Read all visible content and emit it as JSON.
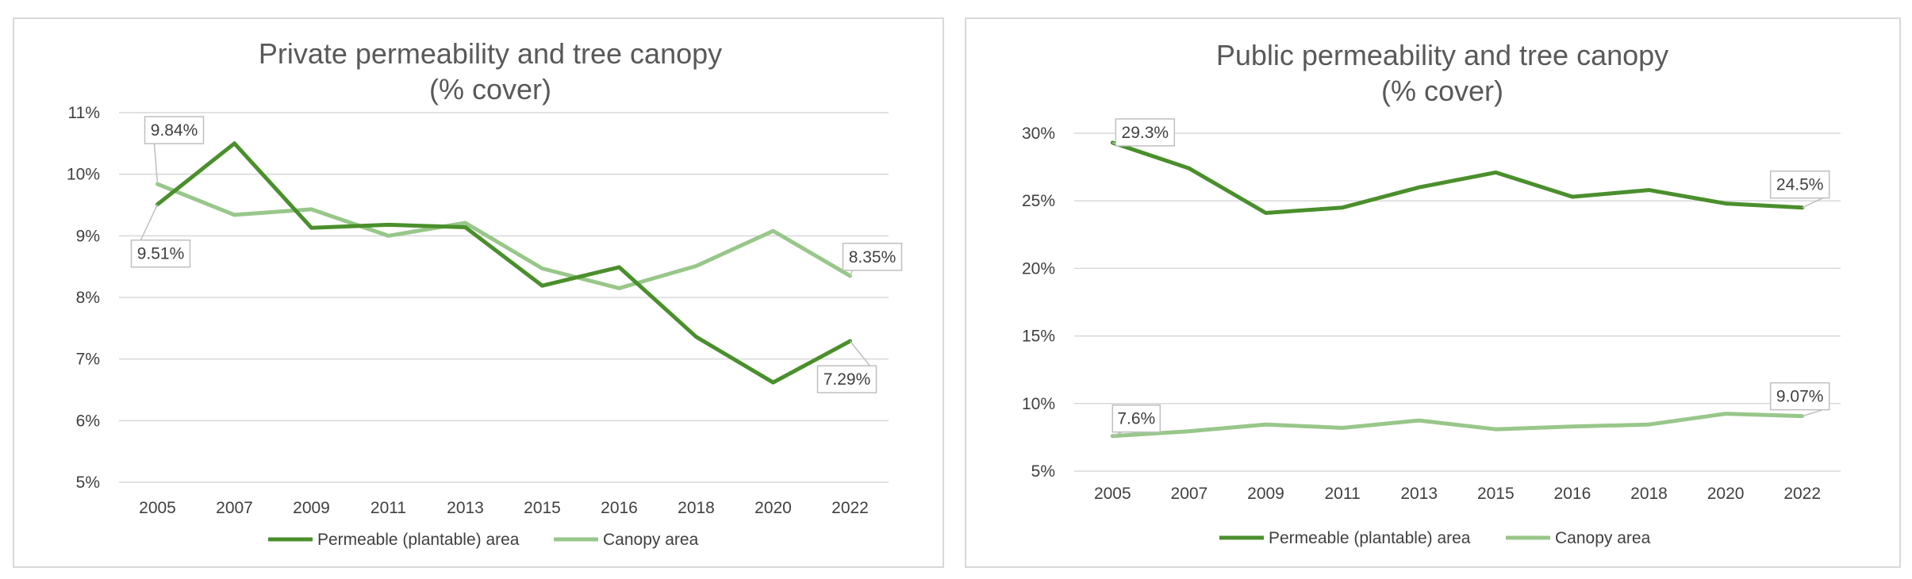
{
  "chart_data": [
    {
      "type": "line",
      "title": "Private permeability and tree canopy",
      "subtitle": "(% cover)",
      "categories": [
        "2005",
        "2007",
        "2009",
        "2011",
        "2013",
        "2015",
        "2016",
        "2018",
        "2020",
        "2022"
      ],
      "series": [
        {
          "name": "Permeable (plantable) area",
          "color": "#4a8f2c",
          "values": [
            9.51,
            10.5,
            9.13,
            9.18,
            9.14,
            8.19,
            8.49,
            7.36,
            6.62,
            7.29
          ]
        },
        {
          "name": "Canopy area",
          "color": "#98c78a",
          "values": [
            9.84,
            9.34,
            9.43,
            9.0,
            9.21,
            8.47,
            8.15,
            8.51,
            9.08,
            8.35
          ]
        }
      ],
      "ylim": [
        5,
        11
      ],
      "yticks": [
        5,
        6,
        7,
        8,
        9,
        10,
        11
      ],
      "ytick_labels": [
        "5%",
        "6%",
        "7%",
        "8%",
        "9%",
        "10%",
        "11%"
      ],
      "grid": true,
      "legend_position": "bottom",
      "annotations": [
        {
          "series": 1,
          "index": 0,
          "label": "9.84%"
        },
        {
          "series": 0,
          "index": 0,
          "label": "9.51%"
        },
        {
          "series": 1,
          "index": 9,
          "label": "8.35%"
        },
        {
          "series": 0,
          "index": 9,
          "label": "7.29%"
        }
      ]
    },
    {
      "type": "line",
      "title": "Public permeability and tree canopy",
      "subtitle": "(% cover)",
      "categories": [
        "2005",
        "2007",
        "2009",
        "2011",
        "2013",
        "2015",
        "2016",
        "2018",
        "2020",
        "2022"
      ],
      "series": [
        {
          "name": "Permeable (plantable) area",
          "color": "#4a8f2c",
          "values": [
            29.3,
            27.4,
            24.1,
            24.5,
            26.0,
            27.1,
            25.3,
            25.8,
            24.8,
            24.5
          ]
        },
        {
          "name": "Canopy area",
          "color": "#98c78a",
          "values": [
            7.6,
            7.95,
            8.45,
            8.2,
            8.75,
            8.1,
            8.3,
            8.45,
            9.25,
            9.07
          ]
        }
      ],
      "ylim": [
        5,
        30
      ],
      "yticks": [
        5,
        10,
        15,
        20,
        25,
        30
      ],
      "ytick_labels": [
        "5%",
        "10%",
        "15%",
        "20%",
        "25%",
        "30%"
      ],
      "grid": true,
      "legend_position": "bottom",
      "annotations": [
        {
          "series": 0,
          "index": 0,
          "label": "29.3%"
        },
        {
          "series": 0,
          "index": 9,
          "label": "24.5%"
        },
        {
          "series": 1,
          "index": 0,
          "label": "7.6%"
        },
        {
          "series": 1,
          "index": 9,
          "label": "9.07%"
        }
      ]
    }
  ]
}
